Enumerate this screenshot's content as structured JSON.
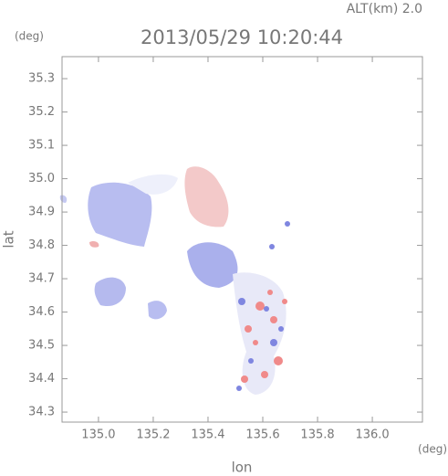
{
  "chart_data": {
    "type": "map",
    "title": "2013/05/29 10:20:44",
    "annotation": "ALT(km) 2.0",
    "x_label": "lon",
    "y_label": "lat",
    "x_unit": "(deg)",
    "y_unit": "(deg)",
    "xlim": [
      134.867,
      136.183
    ],
    "ylim": [
      34.27,
      35.366
    ],
    "xticks": [
      {
        "value": 135,
        "label": "135.0"
      },
      135.2,
      135.4,
      135.6,
      135.8,
      {
        "value": 136,
        "label": "136.0"
      }
    ],
    "yticks": [
      34.3,
      34.4,
      34.5,
      34.6,
      34.7,
      34.8,
      34.9,
      {
        "value": 35,
        "label": "35.0"
      },
      35.1,
      35.2,
      35.3
    ]
  }
}
